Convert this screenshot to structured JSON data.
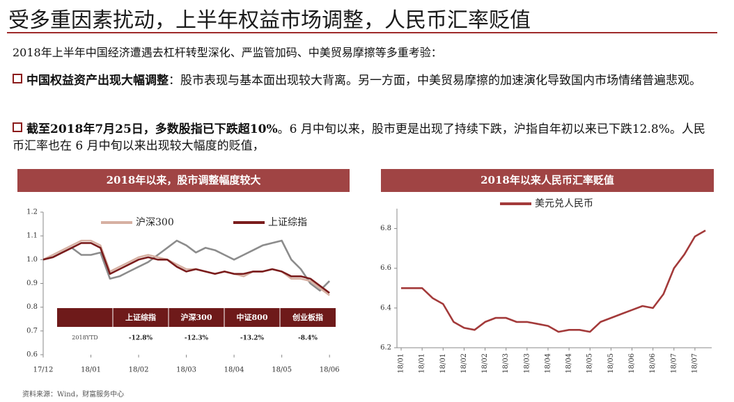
{
  "title": "受多重因素扰动，上半年权益市场调整，人民币汇率贬值",
  "intro": "2018年上半年中国经济遭遇去杠杆转型深化、严监管加码、中美贸易摩擦等多重考验：",
  "bullets": [
    {
      "bold": "中国权益资产出现大幅调整",
      "text": "：股市表现与基本面出现较大背离。另一方面，中美贸易摩擦的加速演化导致国内市场情绪普遍悲观。"
    },
    {
      "bold": "截至2018年7月25日，多数股指已下跌超10%",
      "text": "。6 月中旬以来，股市更是出现了持续下跌，沪指自年初以来已下跌12.8%。人民币汇率也在 6 月中旬以来出现较大幅度的贬值，"
    }
  ],
  "source": "资料来源：Wind，财富服务中心",
  "chart_data": [
    {
      "type": "line",
      "title": "2018年以来，股市调整幅度较大",
      "x": [
        0,
        0.2,
        0.4,
        0.6,
        0.8,
        1,
        1.2,
        1.4,
        1.6,
        1.8,
        2,
        2.2,
        2.4,
        2.6,
        2.8,
        3,
        3.2,
        3.4,
        3.6,
        3.8,
        4,
        4.2,
        4.4,
        4.6,
        4.8,
        5,
        5.2,
        5.4,
        5.6,
        5.8,
        6
      ],
      "xlim": [
        0,
        6.1
      ],
      "xticks": [
        {
          "value": 0,
          "label": "17/12"
        },
        {
          "value": 1,
          "label": "18/01"
        },
        {
          "value": 2,
          "label": "18/02"
        },
        {
          "value": 3,
          "label": "18/03"
        },
        {
          "value": 4,
          "label": "18/04"
        },
        {
          "value": 5,
          "label": "18/05"
        },
        {
          "value": 6,
          "label": "18/06"
        }
      ],
      "ylim": [
        0.6,
        1.2
      ],
      "yticks": [
        0.6,
        0.7,
        0.8,
        0.9,
        {
          "value": 1,
          "label": "1.0"
        },
        1.1,
        1.2
      ],
      "series": [
        {
          "color": "#8c8c8c",
          "values": [
            1.0,
            1.01,
            1.03,
            1.05,
            1.02,
            1.02,
            1.03,
            0.92,
            0.93,
            0.95,
            0.97,
            0.99,
            1.02,
            1.05,
            1.08,
            1.06,
            1.03,
            1.05,
            1.04,
            1.02,
            1.0,
            1.02,
            1.04,
            1.06,
            1.07,
            1.08,
            1.0,
            0.96,
            0.9,
            0.87,
            0.91
          ]
        },
        {
          "name": "沪深300",
          "color": "#d6b0a2",
          "values": [
            1.0,
            1.02,
            1.04,
            1.06,
            1.08,
            1.08,
            1.06,
            0.95,
            0.97,
            0.99,
            1.01,
            1.02,
            1.01,
            1.0,
            0.98,
            0.96,
            0.96,
            0.95,
            0.94,
            0.95,
            0.94,
            0.93,
            0.95,
            0.95,
            0.96,
            0.95,
            0.92,
            0.92,
            0.91,
            0.88,
            0.85
          ]
        },
        {
          "name": "上证综指",
          "color": "#7a1c1c",
          "values": [
            1.0,
            1.01,
            1.03,
            1.05,
            1.07,
            1.07,
            1.05,
            0.94,
            0.96,
            0.98,
            1.0,
            1.01,
            1.0,
            1.0,
            0.97,
            0.95,
            0.96,
            0.95,
            0.94,
            0.95,
            0.94,
            0.94,
            0.95,
            0.95,
            0.96,
            0.95,
            0.93,
            0.93,
            0.92,
            0.89,
            0.86
          ]
        }
      ],
      "table": {
        "header": [
          "上证综指",
          "沪深300",
          "中证800",
          "创业板指"
        ],
        "row_label": "2018YTD",
        "row": [
          "-12.8%",
          "-12.3%",
          "-13.2%",
          "-8.4%"
        ]
      }
    },
    {
      "type": "line",
      "title": "2018年以来人民币汇率贬值",
      "x": [
        0,
        0.5,
        1,
        1.5,
        2,
        2.5,
        3,
        3.5,
        4,
        4.5,
        5,
        5.5,
        6,
        6.5,
        7,
        7.5,
        8,
        8.5,
        9,
        9.5,
        10,
        10.5,
        11,
        11.5,
        12,
        12.5,
        13,
        13.5,
        14,
        14.5
      ],
      "xlim": [
        -0.2,
        14.8
      ],
      "xticks": [
        {
          "value": 0,
          "label": "18/01"
        },
        {
          "value": 1,
          "label": "18/01"
        },
        {
          "value": 2,
          "label": "18/01"
        },
        {
          "value": 3,
          "label": "18/02"
        },
        {
          "value": 4,
          "label": "18/02"
        },
        {
          "value": 5,
          "label": "18/03"
        },
        {
          "value": 6,
          "label": "18/03"
        },
        {
          "value": 7,
          "label": "18/04"
        },
        {
          "value": 8,
          "label": "18/04"
        },
        {
          "value": 9,
          "label": "18/05"
        },
        {
          "value": 10,
          "label": "18/05"
        },
        {
          "value": 11,
          "label": "18/06"
        },
        {
          "value": 12,
          "label": "18/06"
        },
        {
          "value": 13,
          "label": "18/07"
        },
        {
          "value": 14,
          "label": "18/07"
        }
      ],
      "ylim": [
        6.2,
        6.9
      ],
      "yticks": [
        6.2,
        6.4,
        6.6,
        6.8
      ],
      "series": [
        {
          "name": "美元兑人民币",
          "color": "#a33a3a",
          "values": [
            6.5,
            6.5,
            6.5,
            6.45,
            6.42,
            6.33,
            6.3,
            6.29,
            6.33,
            6.35,
            6.35,
            6.33,
            6.33,
            6.32,
            6.31,
            6.28,
            6.29,
            6.29,
            6.28,
            6.33,
            6.35,
            6.37,
            6.39,
            6.41,
            6.4,
            6.47,
            6.6,
            6.67,
            6.76,
            6.79
          ]
        }
      ]
    }
  ]
}
